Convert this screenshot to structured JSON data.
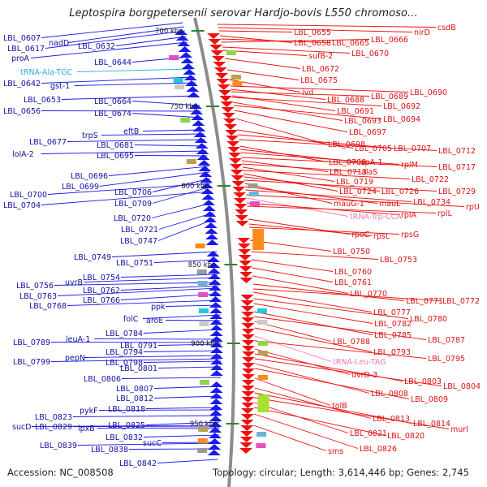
{
  "title": "Leptospira borgpetersenii serovar Hardjo-bovis L550 chromoso...",
  "accession": "Accession: NC_008508",
  "topology": "Topology: circular; Length: 3,614,446 bp; Genes: 2,745",
  "colors": {
    "backbone": "#8c8c8c",
    "forward_strand": "#1a1ae8",
    "reverse_strand": "#ee1111",
    "left_label": "#1010a0",
    "right_label": "#dd1111",
    "trna_left": "#29aee0",
    "trna_right": "#f07ab5",
    "tick": "#2a8a2a"
  },
  "kbp_ticks": [
    "700 kbp",
    "750 kbp",
    "800 kbp",
    "850 kbp",
    "900 kbp",
    "950 kbp"
  ],
  "left_labels": [
    {
      "text": "LBL_0607",
      "type": "gene"
    },
    {
      "text": "nadD",
      "type": "gene"
    },
    {
      "text": "LBL_0617",
      "type": "gene"
    },
    {
      "text": "LBL_0632",
      "type": "gene"
    },
    {
      "text": "proA",
      "type": "gene"
    },
    {
      "text": "LBL_0644",
      "type": "gene"
    },
    {
      "text": "tRNA-Ala-TGC",
      "type": "trna"
    },
    {
      "text": "LBL_0642",
      "type": "gene"
    },
    {
      "text": "gst-1",
      "type": "gene"
    },
    {
      "text": "LBL_0653",
      "type": "gene"
    },
    {
      "text": "LBL_0664",
      "type": "gene"
    },
    {
      "text": "LBL_0656",
      "type": "gene"
    },
    {
      "text": "LBL_0674",
      "type": "gene"
    },
    {
      "text": "eftB",
      "type": "gene"
    },
    {
      "text": "trpS",
      "type": "gene"
    },
    {
      "text": "LBL_0677",
      "type": "gene"
    },
    {
      "text": "LBL_0681",
      "type": "gene"
    },
    {
      "text": "lolA-2",
      "type": "gene"
    },
    {
      "text": "LBL_0695",
      "type": "gene"
    },
    {
      "text": "LBL_0696",
      "type": "gene"
    },
    {
      "text": "LBL_0699",
      "type": "gene"
    },
    {
      "text": "LBL_0706",
      "type": "gene"
    },
    {
      "text": "LBL_0700",
      "type": "gene"
    },
    {
      "text": "LBL_0709",
      "type": "gene"
    },
    {
      "text": "LBL_0704",
      "type": "gene"
    },
    {
      "text": "LBL_0720",
      "type": "gene"
    },
    {
      "text": "LBL_0721",
      "type": "gene"
    },
    {
      "text": "LBL_0747",
      "type": "gene"
    },
    {
      "text": "LBL_0749",
      "type": "gene"
    },
    {
      "text": "LBL_0751",
      "type": "gene"
    },
    {
      "text": "LBL_0754",
      "type": "gene"
    },
    {
      "text": "uvrB",
      "type": "gene"
    },
    {
      "text": "LBL_0756",
      "type": "gene"
    },
    {
      "text": "LBL_0762",
      "type": "gene"
    },
    {
      "text": "LBL_0763",
      "type": "gene"
    },
    {
      "text": "LBL_0766",
      "type": "gene"
    },
    {
      "text": "LBL_0768",
      "type": "gene"
    },
    {
      "text": "ppk",
      "type": "gene"
    },
    {
      "text": "folC",
      "type": "gene"
    },
    {
      "text": "aroE",
      "type": "gene"
    },
    {
      "text": "LBL_0784",
      "type": "gene"
    },
    {
      "text": "leuA-1",
      "type": "gene"
    },
    {
      "text": "LBL_0789",
      "type": "gene"
    },
    {
      "text": "LBL_0791",
      "type": "gene"
    },
    {
      "text": "LBL_0794",
      "type": "gene"
    },
    {
      "text": "pepN",
      "type": "gene"
    },
    {
      "text": "LBL_0799",
      "type": "gene"
    },
    {
      "text": "LBL_0798",
      "type": "gene"
    },
    {
      "text": "LBL_0801",
      "type": "gene"
    },
    {
      "text": "LBL_0806",
      "type": "gene"
    },
    {
      "text": "LBL_0807",
      "type": "gene"
    },
    {
      "text": "LBL_0812",
      "type": "gene"
    },
    {
      "text": "LBL_0818",
      "type": "gene"
    },
    {
      "text": "pykF",
      "type": "gene"
    },
    {
      "text": "LBL_0823",
      "type": "gene"
    },
    {
      "text": "LBL_0825",
      "type": "gene"
    },
    {
      "text": "sucD",
      "type": "gene"
    },
    {
      "text": "LBL_0829",
      "type": "gene"
    },
    {
      "text": "lpxB",
      "type": "gene"
    },
    {
      "text": "LBL_0832",
      "type": "gene"
    },
    {
      "text": "sucC",
      "type": "gene"
    },
    {
      "text": "LBL_0839",
      "type": "gene"
    },
    {
      "text": "LBL_0838",
      "type": "gene"
    },
    {
      "text": "LBL_0842",
      "type": "gene"
    }
  ],
  "right_labels": [
    {
      "text": "csdB",
      "type": "gene"
    },
    {
      "text": "nirD",
      "type": "gene"
    },
    {
      "text": "LBL_0655",
      "type": "gene"
    },
    {
      "text": "LBL_0658",
      "type": "gene"
    },
    {
      "text": "LBL_0665",
      "type": "gene"
    },
    {
      "text": "LBL_0666",
      "type": "gene"
    },
    {
      "text": "LBL_0670",
      "type": "gene"
    },
    {
      "text": "sufB-2",
      "type": "gene"
    },
    {
      "text": "LBL_0672",
      "type": "gene"
    },
    {
      "text": "LBL_0675",
      "type": "gene"
    },
    {
      "text": "ivd",
      "type": "gene"
    },
    {
      "text": "LBL_0690",
      "type": "gene"
    },
    {
      "text": "LBL_0688",
      "type": "gene"
    },
    {
      "text": "LBL_0689",
      "type": "gene"
    },
    {
      "text": "LBL_0691",
      "type": "gene"
    },
    {
      "text": "LBL_0692",
      "type": "gene"
    },
    {
      "text": "LBL_0693",
      "type": "gene"
    },
    {
      "text": "LBL_0694",
      "type": "gene"
    },
    {
      "text": "LBL_0697",
      "type": "gene"
    },
    {
      "text": "LBL_0698",
      "type": "gene"
    },
    {
      "text": "LBL_0705",
      "type": "gene"
    },
    {
      "text": "LBL_0707",
      "type": "gene"
    },
    {
      "text": "LBL_0712",
      "type": "gene"
    },
    {
      "text": "LBL_0708",
      "type": "gene"
    },
    {
      "text": "ispA-1",
      "type": "gene"
    },
    {
      "text": "rplM",
      "type": "gene"
    },
    {
      "text": "LBL_0717",
      "type": "gene"
    },
    {
      "text": "LBL_0713",
      "type": "gene"
    },
    {
      "text": "alaS",
      "type": "gene"
    },
    {
      "text": "LBL_0719",
      "type": "gene"
    },
    {
      "text": "LBL_0722",
      "type": "gene"
    },
    {
      "text": "LBL_0724",
      "type": "gene"
    },
    {
      "text": "LBL_0726",
      "type": "gene"
    },
    {
      "text": "LBL_0729",
      "type": "gene"
    },
    {
      "text": "mauG-1",
      "type": "gene"
    },
    {
      "text": "mauL",
      "type": "gene"
    },
    {
      "text": "LBL_0734",
      "type": "gene"
    },
    {
      "text": "rpU",
      "type": "gene"
    },
    {
      "text": "tRNA-Trp-CCA",
      "type": "trna"
    },
    {
      "text": "rplA",
      "type": "gene"
    },
    {
      "text": "rplL",
      "type": "gene"
    },
    {
      "text": "rpoC",
      "type": "gene"
    },
    {
      "text": "rpsL",
      "type": "gene"
    },
    {
      "text": "rpsG",
      "type": "gene"
    },
    {
      "text": "LBL_0750",
      "type": "gene"
    },
    {
      "text": "LBL_0753",
      "type": "gene"
    },
    {
      "text": "LBL_0760",
      "type": "gene"
    },
    {
      "text": "LBL_0761",
      "type": "gene"
    },
    {
      "text": "LBL_0770",
      "type": "gene"
    },
    {
      "text": "LBL_0771",
      "type": "gene"
    },
    {
      "text": "LBL_0772",
      "type": "gene"
    },
    {
      "text": "LBL_0777",
      "type": "gene"
    },
    {
      "text": "LBL_0780",
      "type": "gene"
    },
    {
      "text": "LBL_0782",
      "type": "gene"
    },
    {
      "text": "LBL_0785",
      "type": "gene"
    },
    {
      "text": "LBL_0787",
      "type": "gene"
    },
    {
      "text": "LBL_0788",
      "type": "gene"
    },
    {
      "text": "LBL_0793",
      "type": "gene"
    },
    {
      "text": "tRNA-Leu-TAG",
      "type": "trna"
    },
    {
      "text": "LBL_0795",
      "type": "gene"
    },
    {
      "text": "uvrD-3",
      "type": "gene"
    },
    {
      "text": "LBL_0803",
      "type": "gene"
    },
    {
      "text": "LBL_0804",
      "type": "gene"
    },
    {
      "text": "LBL_0808",
      "type": "gene"
    },
    {
      "text": "LBL_0809",
      "type": "gene"
    },
    {
      "text": "tolB",
      "type": "gene"
    },
    {
      "text": "LBL_0813",
      "type": "gene"
    },
    {
      "text": "LBL_0814",
      "type": "gene"
    },
    {
      "text": "murI",
      "type": "gene"
    },
    {
      "text": "LBL_0821",
      "type": "gene"
    },
    {
      "text": "LBL_0820",
      "type": "gene"
    },
    {
      "text": "LBL_0826",
      "type": "gene"
    },
    {
      "text": "sms",
      "type": "gene"
    }
  ]
}
